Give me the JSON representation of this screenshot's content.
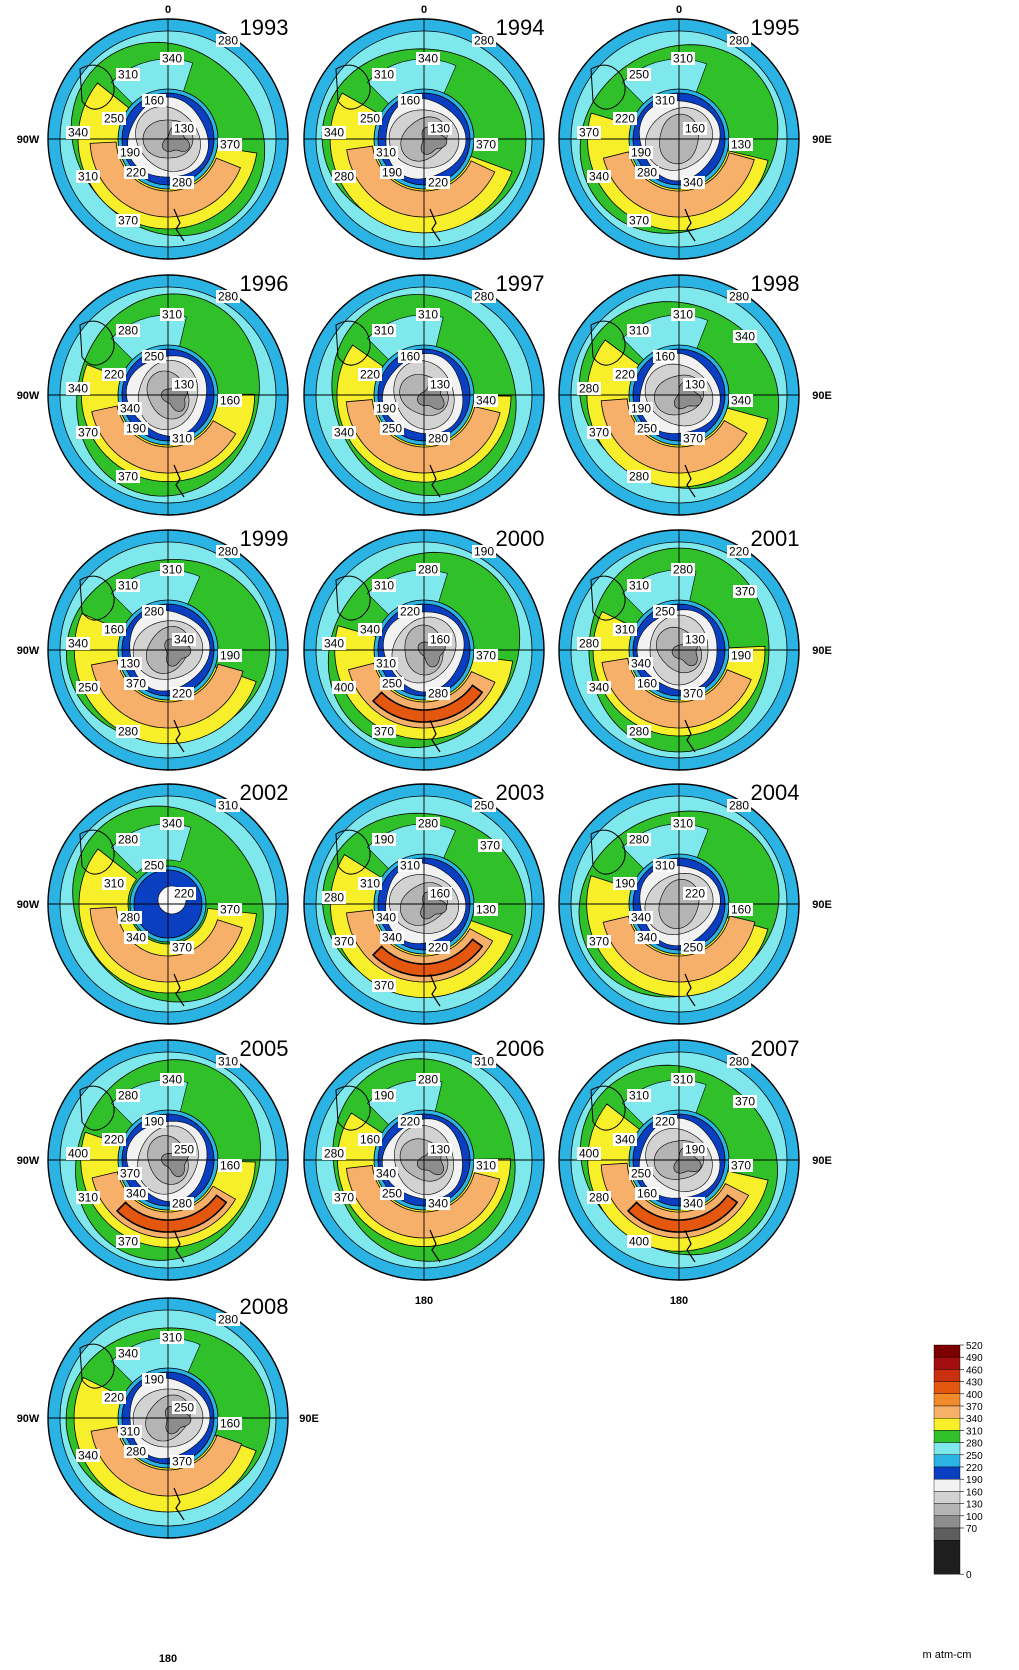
{
  "axis_labels": {
    "top": "0",
    "left": "90W",
    "right": "90E",
    "bottom": "180"
  },
  "colorbar": {
    "unit": "m atm-cm",
    "levels": [
      "520",
      "490",
      "460",
      "430",
      "400",
      "370",
      "340",
      "310",
      "280",
      "250",
      "220",
      "190",
      "160",
      "130",
      "100",
      "70",
      "0"
    ],
    "colors": [
      "#7a0000",
      "#a30f0f",
      "#c9300e",
      "#e4570f",
      "#f08a2a",
      "#f6b06a",
      "#f7ef2a",
      "#2fc02a",
      "#7ee8ec",
      "#2ab3e3",
      "#0b3fc2",
      "#f2f2f2",
      "#d2d2d2",
      "#b4b4b4",
      "#8d8d8d",
      "#5e5e5e",
      "#1e1e1e"
    ]
  },
  "panels": [
    {
      "year": "1993",
      "labels": [
        "340",
        "280",
        "310",
        "250",
        "160",
        "130",
        "370",
        "190",
        "220",
        "280",
        "310",
        "340",
        "370"
      ]
    },
    {
      "year": "1994",
      "labels": [
        "340",
        "280",
        "310",
        "250",
        "160",
        "130",
        "370",
        "310",
        "190",
        "220",
        "280",
        "340"
      ]
    },
    {
      "year": "1995",
      "labels": [
        "310",
        "280",
        "250",
        "220",
        "310",
        "160",
        "130",
        "190",
        "280",
        "340",
        "340",
        "370",
        "370"
      ]
    },
    {
      "year": "1996",
      "labels": [
        "310",
        "280",
        "280",
        "220",
        "250",
        "130",
        "160",
        "340",
        "190",
        "310",
        "370",
        "340",
        "370"
      ]
    },
    {
      "year": "1997",
      "labels": [
        "310",
        "280",
        "310",
        "220",
        "160",
        "130",
        "340",
        "190",
        "250",
        "280",
        "340"
      ]
    },
    {
      "year": "1998",
      "labels": [
        "310",
        "280",
        "310",
        "220",
        "160",
        "130",
        "340",
        "190",
        "250",
        "370",
        "370",
        "280",
        "280",
        "340"
      ]
    },
    {
      "year": "1999",
      "labels": [
        "310",
        "280",
        "310",
        "160",
        "280",
        "340",
        "190",
        "130",
        "370",
        "220",
        "250",
        "340",
        "280"
      ]
    },
    {
      "year": "2000",
      "labels": [
        "280",
        "190",
        "310",
        "340",
        "220",
        "160",
        "370",
        "310",
        "250",
        "280",
        "400",
        "340",
        "370"
      ]
    },
    {
      "year": "2001",
      "labels": [
        "280",
        "220",
        "310",
        "310",
        "250",
        "130",
        "190",
        "340",
        "160",
        "370",
        "340",
        "280",
        "280",
        "370"
      ]
    },
    {
      "year": "2002",
      "labels": [
        "340",
        "310",
        "280",
        "310",
        "250",
        "220",
        "370",
        "280",
        "340",
        "370"
      ]
    },
    {
      "year": "2003",
      "labels": [
        "280",
        "250",
        "190",
        "310",
        "310",
        "160",
        "130",
        "340",
        "340",
        "220",
        "370",
        "280",
        "370",
        "370"
      ]
    },
    {
      "year": "2004",
      "labels": [
        "310",
        "280",
        "280",
        "190",
        "310",
        "220",
        "160",
        "340",
        "340",
        "250",
        "370"
      ]
    },
    {
      "year": "2005",
      "labels": [
        "340",
        "310",
        "280",
        "220",
        "190",
        "250",
        "160",
        "370",
        "340",
        "280",
        "310",
        "400",
        "370"
      ]
    },
    {
      "year": "2006",
      "labels": [
        "280",
        "310",
        "190",
        "160",
        "220",
        "130",
        "310",
        "340",
        "250",
        "340",
        "370",
        "280"
      ]
    },
    {
      "year": "2007",
      "labels": [
        "310",
        "280",
        "310",
        "340",
        "220",
        "190",
        "370",
        "250",
        "160",
        "340",
        "280",
        "400",
        "400",
        "370"
      ]
    },
    {
      "year": "2008",
      "labels": [
        "310",
        "280",
        "340",
        "220",
        "190",
        "250",
        "160",
        "310",
        "280",
        "370",
        "340"
      ]
    }
  ]
}
